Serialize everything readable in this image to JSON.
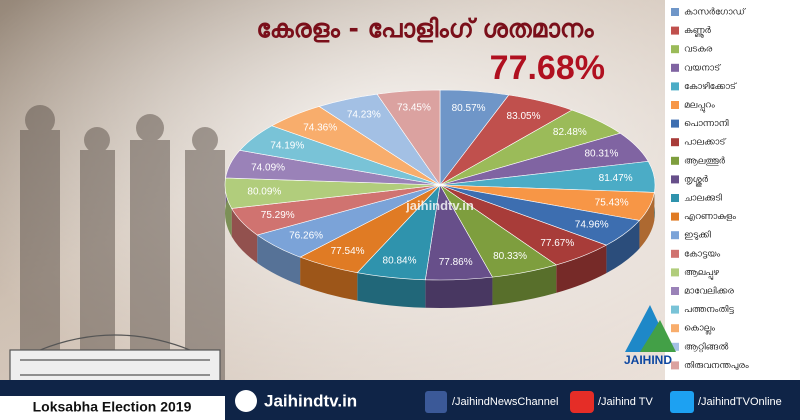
{
  "chart_data": {
    "type": "pie3d",
    "title": "കേരളം - പോളിംഗ് ശതമാനം",
    "overall_label": "77.68%",
    "watermark": "jaihindtv.in",
    "categories": [
      "കാസർഗോഡ്",
      "കണ്ണൂർ",
      "വടകര",
      "വയനാട്",
      "കോഴിക്കോട്",
      "മലപ്പുറം",
      "പൊന്നാനി",
      "പാലക്കാട്",
      "ആലത്തൂർ",
      "തൃശ്ശൂർ",
      "ചാലക്കുടി",
      "എറണാകുളം",
      "ഇടുക്കി",
      "കോട്ടയം",
      "ആലപ്പുഴ",
      "മാവേലിക്കര",
      "പത്തനംതിട്ട",
      "കൊല്ലം",
      "ആറ്റിങ്ങൽ",
      "തിരുവനന്തപുരം"
    ],
    "values": [
      80.57,
      83.05,
      82.48,
      80.31,
      81.47,
      75.43,
      74.96,
      77.67,
      80.33,
      77.86,
      80.84,
      77.54,
      76.26,
      75.29,
      80.09,
      74.09,
      74.19,
      74.36,
      74.23,
      73.45
    ],
    "value_labels": [
      "80.57%",
      "83.05%",
      "82.48%",
      "80.31%",
      "81.47%",
      "75.43%",
      "74.96%",
      "77.67%",
      "80.33%",
      "77.86%",
      "80.84%",
      "77.54%",
      "76.26%",
      "75.29%",
      "80.09%",
      "74.09%",
      "74.19%",
      "74.36%",
      "74.23%",
      "73.45%"
    ],
    "colors": [
      "#6f96c8",
      "#c0504d",
      "#9bbb59",
      "#8064a2",
      "#4bacc6",
      "#f79646",
      "#3d6eb0",
      "#a83c39",
      "#7e9e3e",
      "#674f8a",
      "#2f93ad",
      "#e07b24",
      "#7ba3d8",
      "#d07370",
      "#b1cd7c",
      "#9a82b8",
      "#79c3d7",
      "#f8ad6c",
      "#a3c0e4",
      "#dba2a0"
    ],
    "legend": "right"
  },
  "footer": {
    "badge": "Loksabha Election 2019",
    "site": "Jaihindtv.in",
    "facebook": "/JaihindNewsChannel",
    "youtube": "/Jaihind TV",
    "twitter": "/JaihindTVOnline",
    "logo": "JAIHIND"
  }
}
